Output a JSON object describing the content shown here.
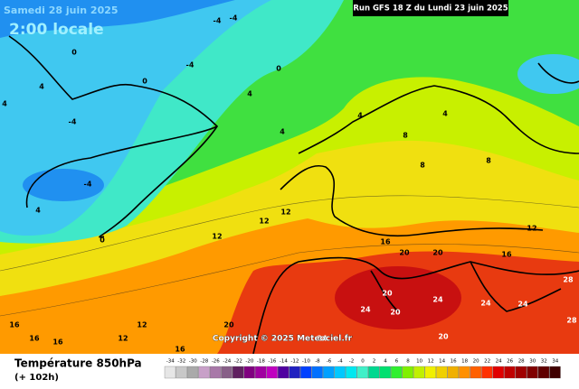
{
  "header": {
    "valid_date": "Samedi 28 juin 2025",
    "local_time": "2:00 locale",
    "run": "Run GFS 18 Z du Lundi 23 juin 2025"
  },
  "copyright": "Copyright © 2025 Meteociel.fr",
  "legend": {
    "title": "Température 850hPa",
    "lead_time": "(+ 102h)",
    "ticks": [
      -34,
      -32,
      -30,
      -28,
      -26,
      -24,
      -22,
      -20,
      -18,
      -16,
      -14,
      -12,
      -10,
      -8,
      -6,
      -4,
      -2,
      0,
      2,
      4,
      6,
      8,
      10,
      12,
      14,
      16,
      18,
      20,
      22,
      24,
      26,
      28,
      30,
      32,
      34
    ],
    "colors": [
      "#e6e6e6",
      "#c8c8c8",
      "#aaaaaa",
      "#c8a0c8",
      "#a878a8",
      "#886088",
      "#602060",
      "#800080",
      "#a000a0",
      "#c000c0",
      "#5000a0",
      "#2020c0",
      "#0040ff",
      "#0070ff",
      "#00a0ff",
      "#00c8ff",
      "#00e8f0",
      "#40f0c8",
      "#00d890",
      "#00e070",
      "#30f030",
      "#80f000",
      "#c0f000",
      "#f0f000",
      "#f0d000",
      "#f0b000",
      "#ff9000",
      "#ff6000",
      "#ff3000",
      "#e00000",
      "#c00000",
      "#a00000",
      "#800000",
      "#600000",
      "#400000"
    ]
  },
  "map": {
    "contour_labels": [
      -4,
      -4,
      0,
      4,
      -4,
      0,
      -4,
      4,
      0,
      4,
      -4,
      4,
      4,
      0,
      4,
      4,
      8,
      8,
      8,
      12,
      12,
      12,
      16,
      20,
      20,
      16,
      12,
      20,
      24,
      24,
      20,
      24,
      24,
      28,
      28,
      24,
      20,
      16,
      16,
      16,
      12,
      12,
      16,
      20
    ]
  }
}
